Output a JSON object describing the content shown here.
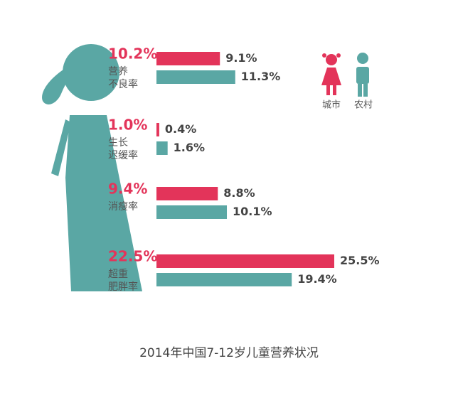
{
  "chart_data": {
    "type": "bar",
    "title": "2014年中国7-12岁儿童营养状况",
    "categories": [
      [
        "营养",
        "不良率"
      ],
      [
        "生长",
        "迟缓率"
      ],
      [
        "消瘦率"
      ],
      [
        "超重",
        "肥胖率"
      ]
    ],
    "overall": {
      "values": [
        10.2,
        1.0,
        9.4,
        22.5
      ],
      "value_labels": [
        "10.2%",
        "1.0%",
        "9.4%",
        "22.5%"
      ],
      "color": "#e3345a"
    },
    "series": [
      {
        "name": "城市",
        "color": "#e3345a",
        "values": [
          9.1,
          0.4,
          8.8,
          25.5
        ],
        "value_labels": [
          "9.1%",
          "0.4%",
          "8.8%",
          "25.5%"
        ]
      },
      {
        "name": "农村",
        "color": "#5aa7a4",
        "values": [
          11.3,
          1.6,
          10.1,
          19.4
        ],
        "value_labels": [
          "11.3%",
          "1.6%",
          "10.1%",
          "19.4%"
        ]
      }
    ]
  }
}
